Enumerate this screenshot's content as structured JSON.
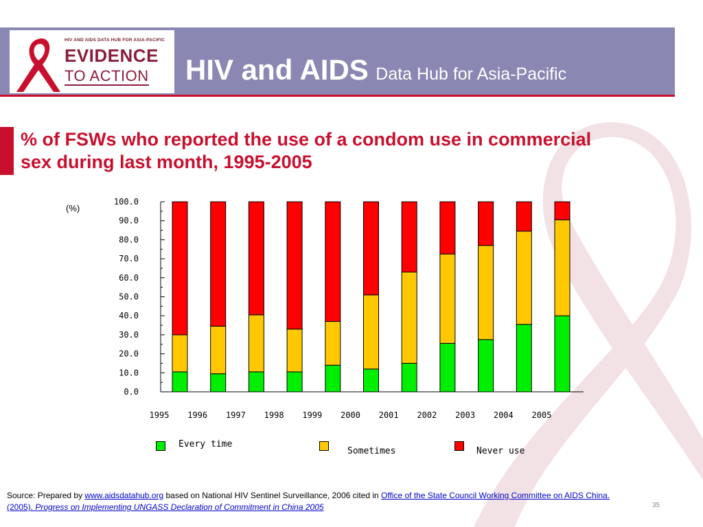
{
  "header": {
    "logo_tag": "HIV AND AIDS DATA HUB FOR ASIA-PACIFIC",
    "logo_line1": "EVIDENCE",
    "logo_line2": "TO ACTION",
    "title_main": "HIV and AIDS",
    "title_sub": "Data Hub for Asia-Pacific"
  },
  "slide_title": "% of FSWs who reported the use of a condom use in commercial sex during last month, 1995-2005",
  "colors": {
    "header_bg": "#8a87b3",
    "accent_red": "#c8102e",
    "every_time": "#00ee00",
    "sometimes": "#ffc800",
    "never_use": "#ff0000"
  },
  "chart_data": {
    "type": "bar",
    "stacked": true,
    "unit_label": "(%)",
    "categories": [
      "1995",
      "1996",
      "1997",
      "1998",
      "1999",
      "2000",
      "2001",
      "2002",
      "2003",
      "2004",
      "2005"
    ],
    "y_ticks": [
      "0.0",
      "10.0",
      "20.0",
      "30.0",
      "40.0",
      "50.0",
      "60.0",
      "70.0",
      "80.0",
      "90.0",
      "100.0"
    ],
    "ylim": [
      0,
      100
    ],
    "series": [
      {
        "name": "Every time",
        "color": "#00ee00",
        "values": [
          10.5,
          9.5,
          10.5,
          10.5,
          14,
          12,
          15,
          25.5,
          27.5,
          35.5,
          40
        ]
      },
      {
        "name": "Sometimes",
        "color": "#ffc800",
        "values": [
          19.5,
          25,
          30,
          22.5,
          23,
          39,
          48,
          47,
          49.5,
          49,
          50.5
        ]
      },
      {
        "name": "Never use",
        "color": "#ff0000",
        "values": [
          70,
          65.5,
          59.5,
          67,
          63,
          49,
          37,
          27.5,
          23,
          15.5,
          9.5
        ]
      }
    ],
    "legend_position": "bottom"
  },
  "source": {
    "prefix": "Source: Prepared by ",
    "link1": "www.aidsdatahub.org",
    "middle": "  based on National HIV Sentinel Surveillance, 2006 cited in ",
    "link2": "Office of the State Council Working Committee on AIDS China. (2005). ",
    "link3": "Progress on Implementing UNGASS Declaration of Commitment in China 2005"
  },
  "page_number": "35"
}
